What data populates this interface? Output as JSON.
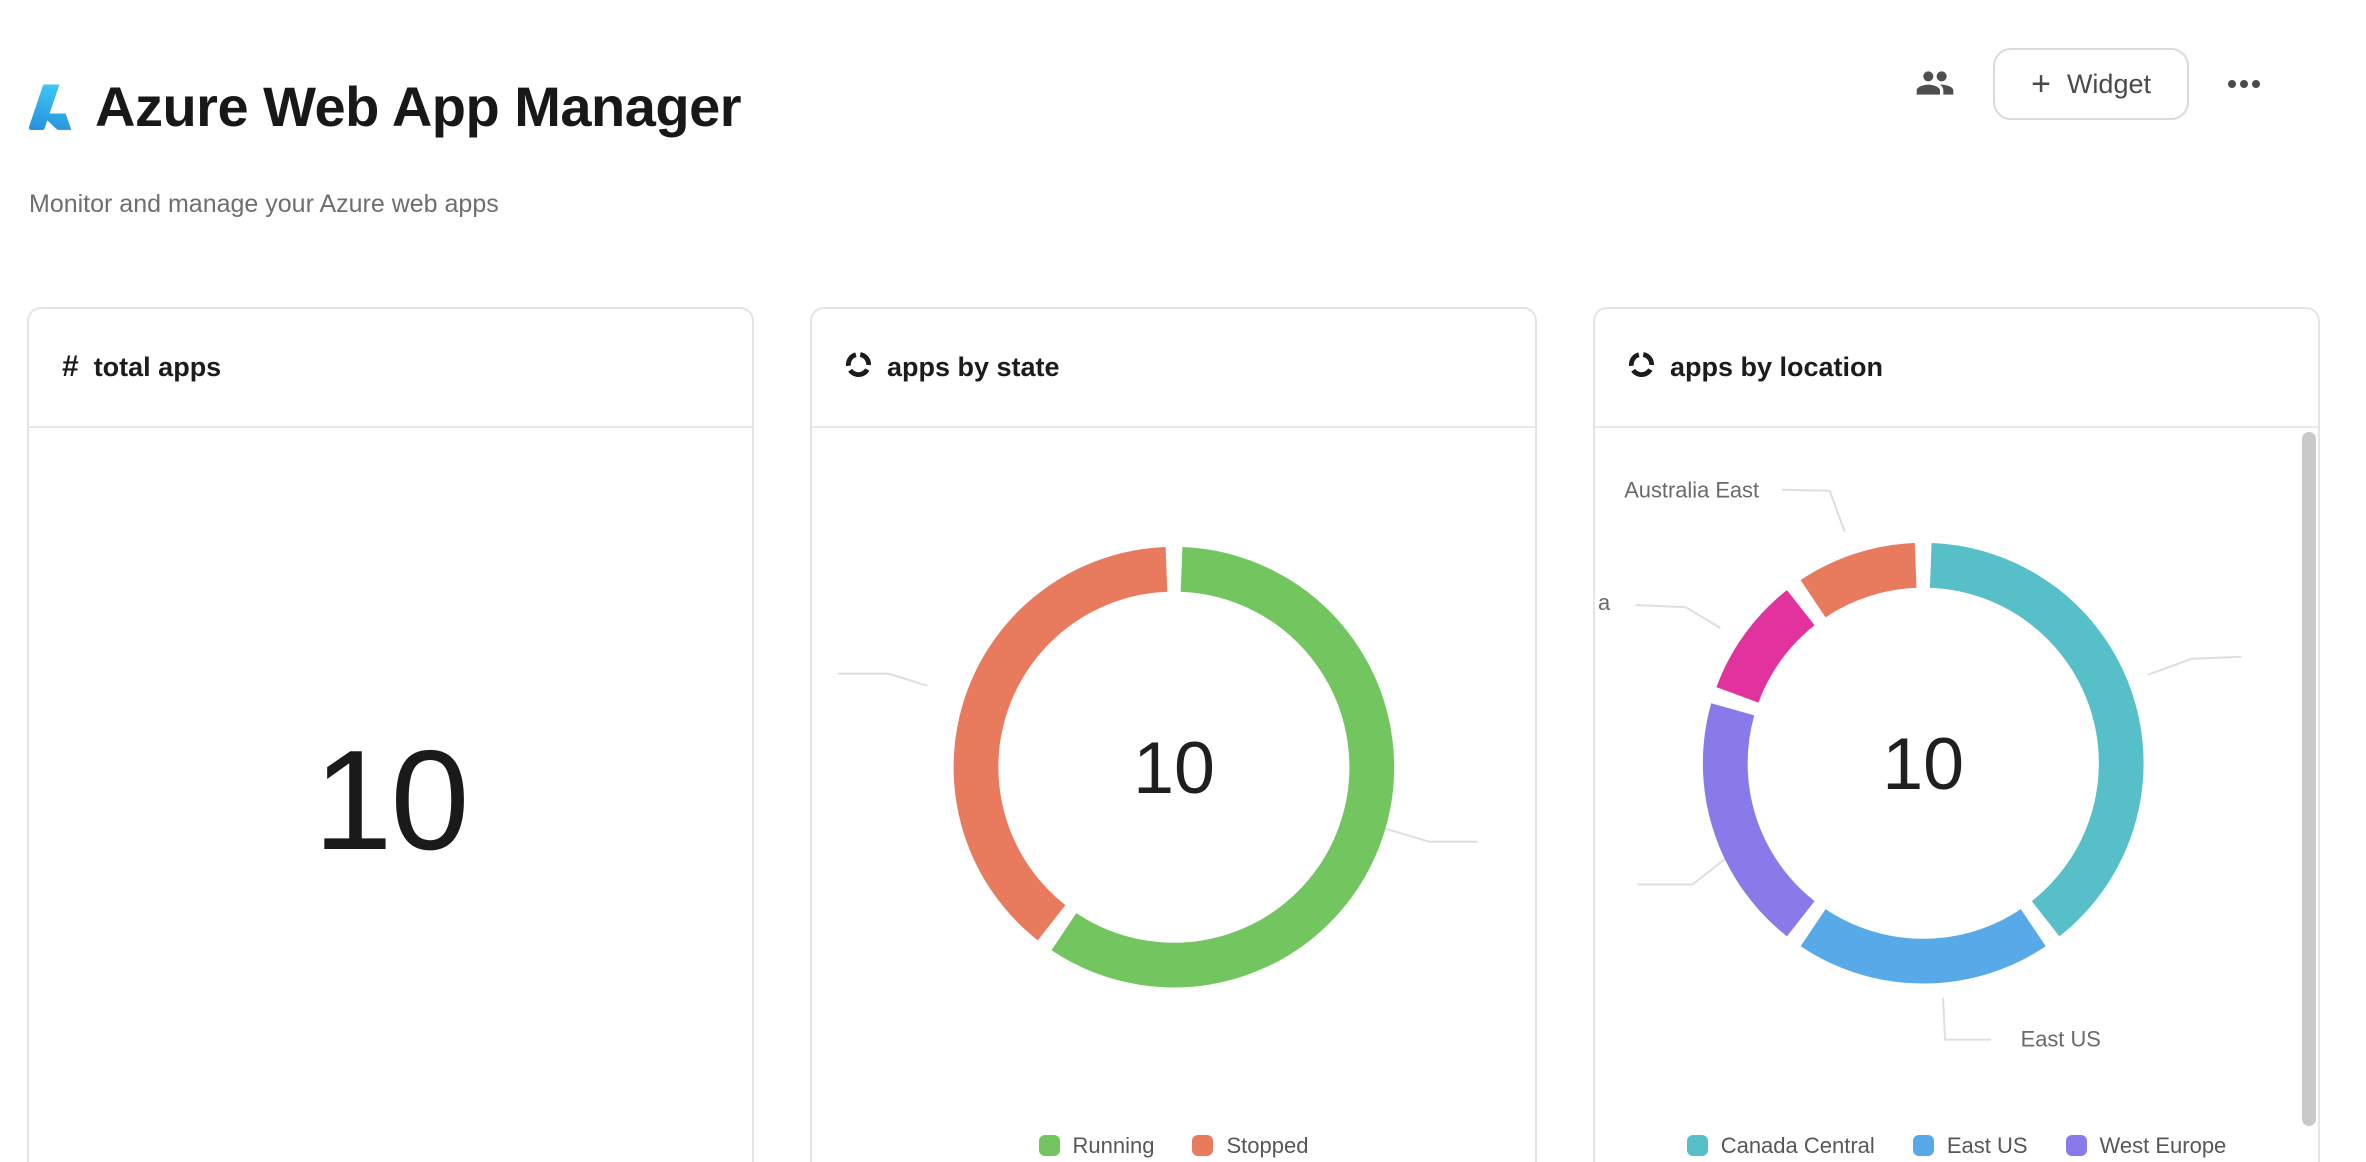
{
  "header": {
    "title": "Azure Web App Manager",
    "subtitle": "Monitor and manage your Azure web apps",
    "actions": {
      "widget_button": {
        "plus": "+",
        "label": "Widget"
      }
    }
  },
  "cards": [
    {
      "id": "total-apps",
      "icon": "hash-icon",
      "icon_glyph": "#",
      "title": "total apps",
      "value": "10"
    },
    {
      "id": "apps-by-state",
      "icon": "donut-icon",
      "title": "apps by state"
    },
    {
      "id": "apps-by-location",
      "icon": "donut-icon",
      "title": "apps by location"
    }
  ],
  "chart_data": [
    {
      "type": "pie",
      "donut": true,
      "title": "apps by state",
      "center_label": "10",
      "total": 10,
      "series": [
        {
          "name": "Running",
          "value": 6,
          "color": "#72c55f"
        },
        {
          "name": "Stopped",
          "value": 4,
          "color": "#e87a5e"
        }
      ],
      "legend": [
        "Running",
        "Stopped"
      ],
      "legend_position": "bottom-center",
      "callouts": [
        {
          "label": ""
        },
        {
          "label": ""
        }
      ]
    },
    {
      "type": "pie",
      "donut": true,
      "title": "apps by location",
      "center_label": "10",
      "total": 10,
      "series": [
        {
          "name": "Canada Central",
          "value": 4,
          "color": "#57bfc7"
        },
        {
          "name": "East US",
          "value": 2,
          "color": "#57a9e8"
        },
        {
          "name": "West Europe",
          "value": 2,
          "color": "#887ae9"
        },
        {
          "name": "a",
          "value": 1,
          "color": "#e1329e",
          "name_clipped": true
        },
        {
          "name": "Australia East",
          "value": 1,
          "color": "#e87a5e"
        }
      ],
      "legend": [
        "Canada Central",
        "East US",
        "West Europe"
      ],
      "legend_position": "bottom-center",
      "callouts": [
        {
          "label": ""
        },
        {
          "label": "East US"
        },
        {
          "label": ""
        },
        {
          "label": "a",
          "clipped": true
        },
        {
          "label": "Australia East"
        }
      ]
    }
  ],
  "colors": {
    "running_green": "#72c55f",
    "stopped_salmon": "#e87a5e",
    "canada_central_teal": "#57bfc7",
    "east_us_blue": "#57a9e8",
    "west_europe_purple": "#887ae9",
    "magenta_slice": "#e1329e",
    "australia_east_orange": "#e87a5e",
    "leader_line": "#dedede",
    "callout_text": "#6a6a6a"
  }
}
